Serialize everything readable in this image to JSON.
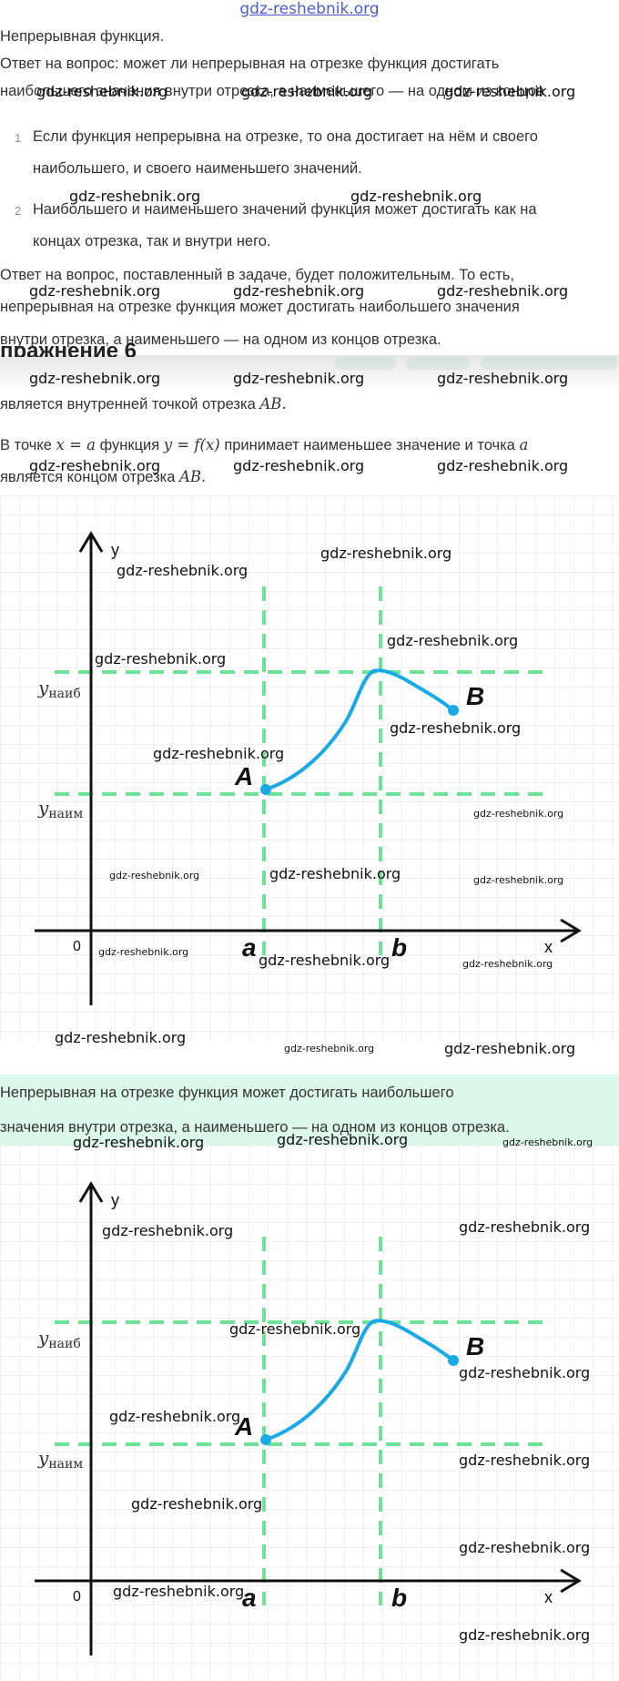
{
  "site_header": "gdz-reshebnik.org",
  "watermark": "gdz-reshebnik.org",
  "intro": {
    "title": "Непрерывная функция.",
    "question_line1": "Ответ на вопрос: может ли непрерывная на отрезке функция достигать",
    "question_line2": "наибольшего значения внутри отрезка, а наименьшего — на одном из концов"
  },
  "list": [
    {
      "num": "1",
      "line1": "Если функция непрерывна на отрезке, то она достигает на нём и своего",
      "line2": "наибольшего, и своего наименьшего значений."
    },
    {
      "num": "2",
      "line1": "Наибольшего и наименьшего значений функция может достигать как на",
      "line2": "концах отрезка, так и внутри него."
    }
  ],
  "answer": {
    "line1": "Ответ на вопрос, поставленный в задаче, будет положительным. То есть,",
    "line2": "непрерывная на отрезке функция может достигать наибольшего значения",
    "line3": "внутри отрезка, а наименьшего — на одном из концов отрезка."
  },
  "overlap_heading": "пражнение 6",
  "explanation": {
    "p1": "является внутренней точкой отрезка",
    "p1_math": "AB.",
    "p2_pre": "В точке",
    "p2_math1": "x = a",
    "p2_mid": "функция",
    "p2_math2": "y = f(x)",
    "p2_post": "принимает наименьшее значение и точка",
    "p2_math3": "a",
    "p3": "является концом отрезка",
    "p3_math": "AB."
  },
  "graph_labels": {
    "y_axis": "y",
    "x_axis": "x",
    "origin": "0",
    "y_max": "y",
    "y_max_sub": "наиб",
    "y_min": "y",
    "y_min_sub": "наим",
    "point_a": "A",
    "point_b": "B",
    "tick_a": "a",
    "tick_b": "b"
  },
  "conclusion": {
    "line1": "Непрерывная на отрезке функция может достигать наибольшего",
    "line2": "значения внутри отрезка, а наименьшего — на одном из концов отрезка."
  },
  "colors": {
    "curve": "#18a9e6",
    "guide": "#6fe29a",
    "grid": "#e3e3e3",
    "axis": "#111111",
    "highlight": "#dcf8ea",
    "header_link": "#4a5bd4"
  }
}
